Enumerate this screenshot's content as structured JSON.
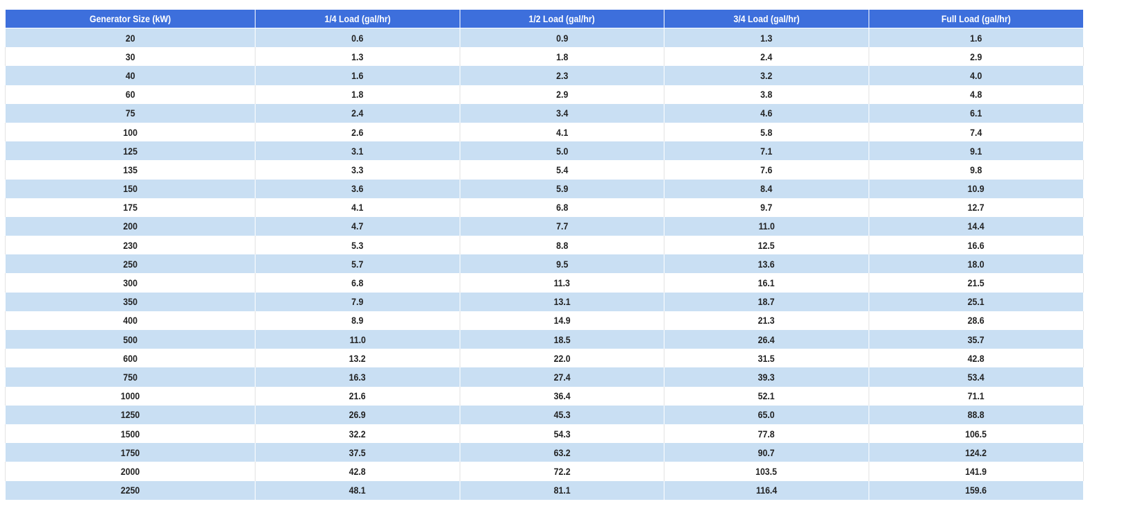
{
  "table": {
    "header": [
      "Generator Size (kW)",
      "1/4 Load (gal/hr)",
      "1/2 Load (gal/hr)",
      "3/4 Load (gal/hr)",
      "Full Load (gal/hr)"
    ],
    "rows": [
      [
        "20",
        "0.6",
        "0.9",
        "1.3",
        "1.6"
      ],
      [
        "30",
        "1.3",
        "1.8",
        "2.4",
        "2.9"
      ],
      [
        "40",
        "1.6",
        "2.3",
        "3.2",
        "4.0"
      ],
      [
        "60",
        "1.8",
        "2.9",
        "3.8",
        "4.8"
      ],
      [
        "75",
        "2.4",
        "3.4",
        "4.6",
        "6.1"
      ],
      [
        "100",
        "2.6",
        "4.1",
        "5.8",
        "7.4"
      ],
      [
        "125",
        "3.1",
        "5.0",
        "7.1",
        "9.1"
      ],
      [
        "135",
        "3.3",
        "5.4",
        "7.6",
        "9.8"
      ],
      [
        "150",
        "3.6",
        "5.9",
        "8.4",
        "10.9"
      ],
      [
        "175",
        "4.1",
        "6.8",
        "9.7",
        "12.7"
      ],
      [
        "200",
        "4.7",
        "7.7",
        "11.0",
        "14.4"
      ],
      [
        "230",
        "5.3",
        "8.8",
        "12.5",
        "16.6"
      ],
      [
        "250",
        "5.7",
        "9.5",
        "13.6",
        "18.0"
      ],
      [
        "300",
        "6.8",
        "11.3",
        "16.1",
        "21.5"
      ],
      [
        "350",
        "7.9",
        "13.1",
        "18.7",
        "25.1"
      ],
      [
        "400",
        "8.9",
        "14.9",
        "21.3",
        "28.6"
      ],
      [
        "500",
        "11.0",
        "18.5",
        "26.4",
        "35.7"
      ],
      [
        "600",
        "13.2",
        "22.0",
        "31.5",
        "42.8"
      ],
      [
        "750",
        "16.3",
        "27.4",
        "39.3",
        "53.4"
      ],
      [
        "1000",
        "21.6",
        "36.4",
        "52.1",
        "71.1"
      ],
      [
        "1250",
        "26.9",
        "45.3",
        "65.0",
        "88.8"
      ],
      [
        "1500",
        "32.2",
        "54.3",
        "77.8",
        "106.5"
      ],
      [
        "1750",
        "37.5",
        "63.2",
        "90.7",
        "124.2"
      ],
      [
        "2000",
        "42.8",
        "72.2",
        "103.5",
        "141.9"
      ],
      [
        "2250",
        "48.1",
        "81.1",
        "116.4",
        "159.6"
      ]
    ]
  }
}
